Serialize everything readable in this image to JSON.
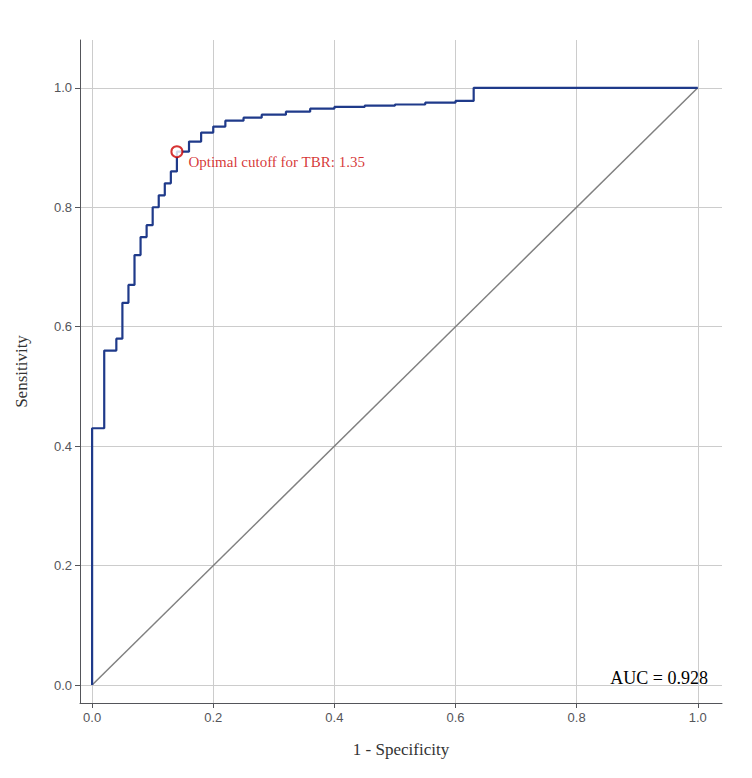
{
  "chart_data": {
    "type": "line",
    "xlabel": "1 - Specificity",
    "ylabel": "Sensitivity",
    "xlim": [
      -0.02,
      1.04
    ],
    "ylim": [
      -0.03,
      1.08
    ],
    "xticks": [
      {
        "value": 0.0,
        "label": "0.0"
      },
      0.2,
      0.4,
      0.6,
      0.8,
      {
        "value": 1.0,
        "label": "1.0"
      }
    ],
    "yticks": [
      {
        "value": 0.0,
        "label": "0.0"
      },
      0.2,
      0.4,
      0.6,
      0.8,
      {
        "value": 1.0,
        "label": "1.0"
      }
    ],
    "grid": true,
    "series": [
      {
        "type": "line",
        "color": "#808080",
        "x": [
          0,
          1
        ],
        "values": [
          0,
          1
        ]
      },
      {
        "type": "line",
        "color": "#1f3a8a",
        "x": [
          0.0,
          0.0,
          0.02,
          0.02,
          0.04,
          0.04,
          0.05,
          0.05,
          0.06,
          0.06,
          0.07,
          0.07,
          0.08,
          0.08,
          0.09,
          0.09,
          0.1,
          0.1,
          0.11,
          0.11,
          0.12,
          0.12,
          0.13,
          0.13,
          0.14,
          0.14,
          0.16,
          0.16,
          0.18,
          0.18,
          0.2,
          0.2,
          0.22,
          0.22,
          0.25,
          0.25,
          0.28,
          0.28,
          0.32,
          0.32,
          0.36,
          0.36,
          0.4,
          0.4,
          0.45,
          0.45,
          0.5,
          0.5,
          0.55,
          0.55,
          0.6,
          0.6,
          0.63,
          0.63,
          1.0
        ],
        "values": [
          0.0,
          0.43,
          0.43,
          0.56,
          0.56,
          0.58,
          0.58,
          0.64,
          0.64,
          0.67,
          0.67,
          0.72,
          0.72,
          0.75,
          0.75,
          0.77,
          0.77,
          0.8,
          0.8,
          0.82,
          0.82,
          0.84,
          0.84,
          0.86,
          0.86,
          0.893,
          0.893,
          0.91,
          0.91,
          0.925,
          0.925,
          0.935,
          0.935,
          0.945,
          0.945,
          0.95,
          0.95,
          0.955,
          0.955,
          0.96,
          0.96,
          0.965,
          0.965,
          0.968,
          0.968,
          0.97,
          0.97,
          0.972,
          0.972,
          0.975,
          0.975,
          0.978,
          0.978,
          1.0,
          1.0
        ]
      },
      {
        "type": "scatter",
        "color": "#cc0000",
        "marker": "emptyCircle",
        "x": [
          0.14
        ],
        "values": [
          0.893
        ],
        "annotation": {
          "text": "Optimal cutoff for TBR: 1.35",
          "color": "#cc0000"
        }
      }
    ],
    "annotations": [
      {
        "text": "AUC = 0.928"
      }
    ]
  }
}
